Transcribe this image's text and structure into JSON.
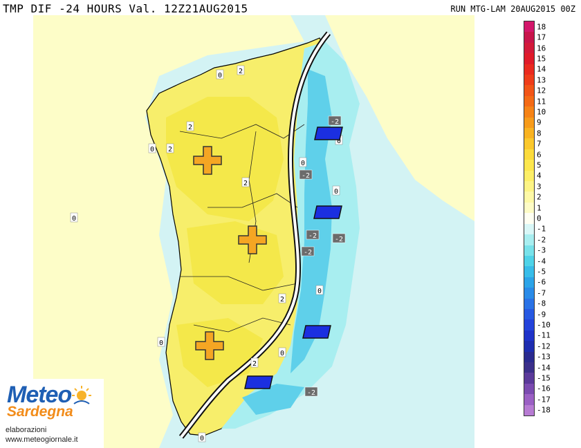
{
  "header": {
    "title": "TMP DIF -24 HOURS Val. 12Z21AUG2015",
    "run_info": "RUN MTG-LAM 20AUG2015 00Z"
  },
  "colors": {
    "sea_neutral": "#fdfdc8",
    "land_warm": "#f5ec5a",
    "land_light": "#fbf5a6",
    "cold_light": "#c6f0f3",
    "cold_mid": "#7fd9ec",
    "cold_strong": "#3bb7e6",
    "warm_marker": "#f5a623",
    "cold_marker": "#1b2fe0"
  },
  "map": {
    "contour_labels": [
      {
        "text": "0"
      },
      {
        "text": "2"
      },
      {
        "text": "2"
      },
      {
        "text": "2"
      },
      {
        "text": "0"
      },
      {
        "text": "2"
      },
      {
        "text": "0"
      },
      {
        "text": "2"
      },
      {
        "text": "0"
      },
      {
        "text": "2"
      },
      {
        "text": "0"
      },
      {
        "text": "0"
      },
      {
        "text": "-2"
      },
      {
        "text": "-2"
      },
      {
        "text": "0"
      },
      {
        "text": "-2"
      },
      {
        "text": "-2"
      },
      {
        "text": "-2"
      },
      {
        "text": "0"
      },
      {
        "text": "-2"
      },
      {
        "text": "0"
      },
      {
        "text": "0"
      }
    ],
    "warm_markers": [
      "plus",
      "plus",
      "plus"
    ],
    "cold_markers": [
      "minus",
      "minus",
      "minus",
      "minus"
    ]
  },
  "colorbar": {
    "levels": [
      "18",
      "17",
      "16",
      "15",
      "14",
      "13",
      "12",
      "11",
      "10",
      "9",
      "8",
      "7",
      "6",
      "5",
      "4",
      "3",
      "2",
      "1",
      "0",
      "-1",
      "-2",
      "-3",
      "-4",
      "-5",
      "-6",
      "-7",
      "-8",
      "-9",
      "-10",
      "-11",
      "-12",
      "-13",
      "-14",
      "-15",
      "-16",
      "-17",
      "-18"
    ],
    "colors": [
      "#d3176b",
      "#c8154b",
      "#d31a3a",
      "#e01b2a",
      "#ea2a1f",
      "#ef3d1a",
      "#f25517",
      "#f46a15",
      "#f68316",
      "#f79b1a",
      "#f9b321",
      "#fbc82c",
      "#fcdb3c",
      "#fde74e",
      "#fdef67",
      "#fdf485",
      "#fef9a6",
      "#fefcc6",
      "#fffff2",
      "#d9f7f7",
      "#a8eef0",
      "#78e2ea",
      "#4fd3e8",
      "#38bde9",
      "#2ca4e8",
      "#2a8be8",
      "#2a72e6",
      "#2759e2",
      "#2443db",
      "#1f33c9",
      "#1e2db0",
      "#2a2a8f",
      "#3b2f8a",
      "#5b3a9a",
      "#7b4bb0",
      "#9b60c4",
      "#b77bd3"
    ]
  },
  "logo": {
    "brand_top": "Meteo",
    "brand_bottom": "Sardegna",
    "credit": "elaborazioni",
    "url": "www.meteogiornale.it"
  }
}
